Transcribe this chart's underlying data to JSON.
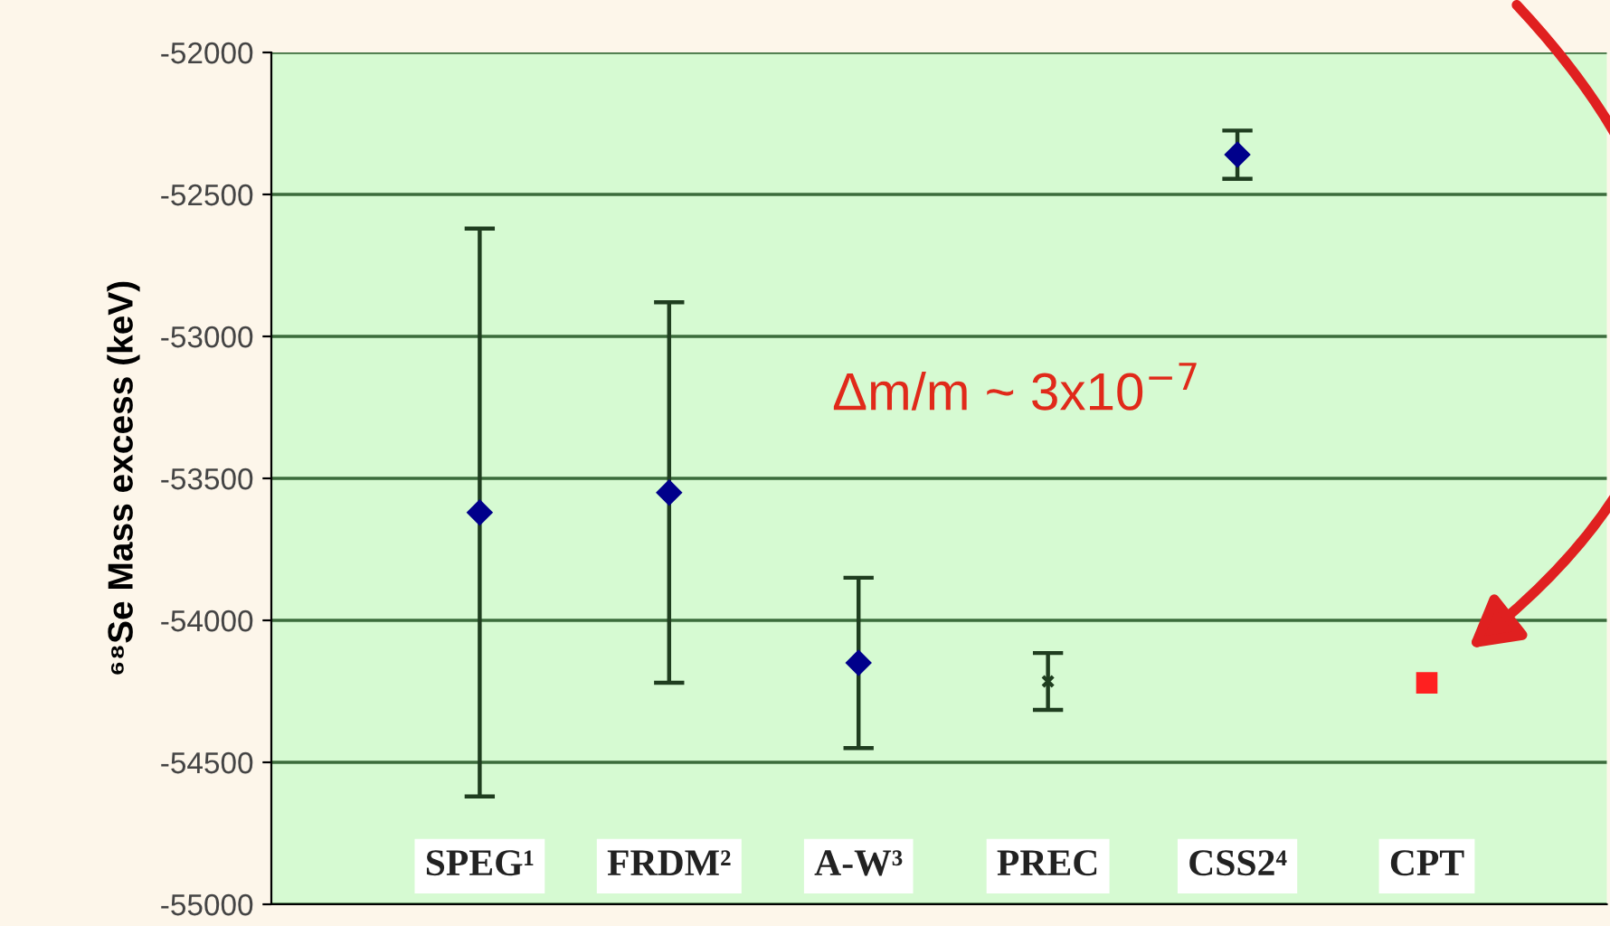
{
  "chart_data": {
    "type": "scatter",
    "ylabel": "⁶⁸Se Mass excess (keV)",
    "categories": [
      "SPEG¹",
      "FRDM²",
      "A-W³",
      "PREC",
      "CSS2⁴",
      "CPT"
    ],
    "series": [
      {
        "color": "#00008b",
        "marker": "diamond",
        "values": [
          -53620,
          -53550,
          -54150,
          null,
          -52360,
          null
        ],
        "errors": [
          1000,
          670,
          300,
          null,
          85,
          null
        ]
      },
      {
        "color": "#1f3d1f",
        "marker": "cross",
        "values": [
          null,
          null,
          null,
          -54215,
          null,
          null
        ],
        "errors": [
          null,
          null,
          null,
          100,
          null,
          null
        ]
      },
      {
        "color": "#ff2020",
        "marker": "square",
        "values": [
          null,
          null,
          null,
          null,
          null,
          -54220
        ]
      }
    ],
    "annotations": [
      "Δm/m ~ 3x10$^{−7}$"
    ],
    "ylim": [
      -55000,
      -52000
    ],
    "yticks": [
      -55000,
      -54500,
      -54000,
      -53500,
      -53000,
      -52500,
      -52000
    ],
    "grid": "y"
  }
}
